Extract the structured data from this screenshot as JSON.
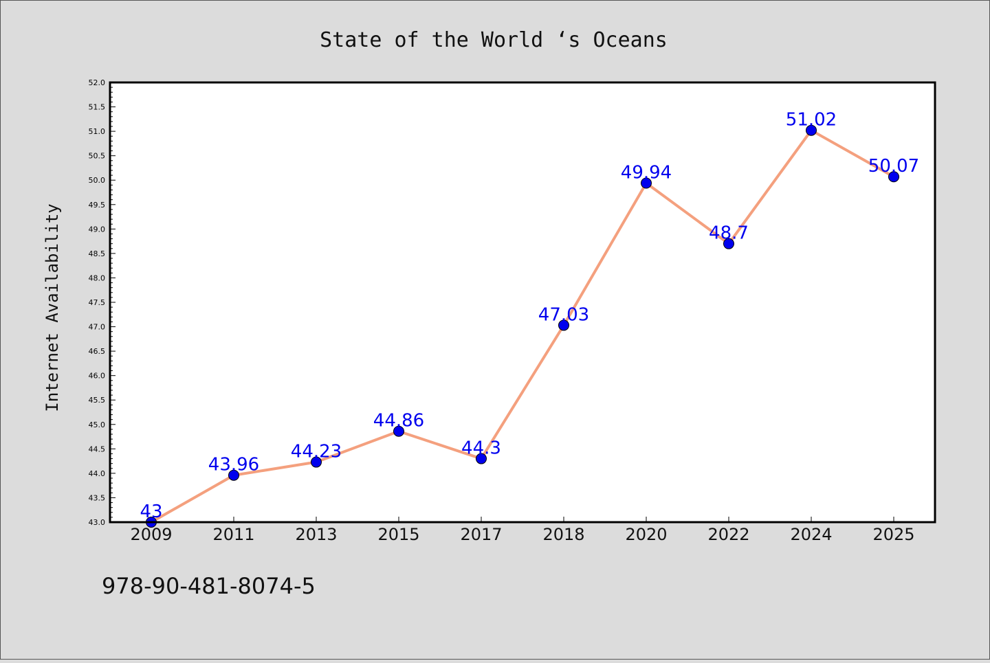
{
  "chart_data": {
    "type": "line",
    "title": "State of the World ‘s Oceans",
    "xlabel": "",
    "ylabel": "Internet Availability",
    "categories": [
      "2009",
      "2011",
      "2013",
      "2015",
      "2017",
      "2018",
      "2020",
      "2022",
      "2024",
      "2025"
    ],
    "series": [
      {
        "values": [
          43,
          43.96,
          44.23,
          44.86,
          44.3,
          47.03,
          49.94,
          48.7,
          51.02,
          50.07
        ],
        "data_labels": [
          "43",
          "43.96",
          "44.23",
          "44.86",
          "44.3",
          "47.03",
          "49.94",
          "48.7",
          "51.02",
          "50.07"
        ],
        "line_color": "#f4a07e",
        "marker_color": "#0000ee",
        "label_color": "#0000ee"
      }
    ],
    "ylim": [
      43.0,
      52.0
    ],
    "yticks": [
      "43.0",
      "43.5",
      "44.0",
      "44.5",
      "45.0",
      "45.5",
      "46.0",
      "46.5",
      "47.0",
      "47.5",
      "48.0",
      "48.5",
      "49.0",
      "49.5",
      "50.0",
      "50.5",
      "51.0",
      "51.5",
      "52.0"
    ],
    "grid": false,
    "legend": "none",
    "background_color": "#dcdcdc",
    "plot_background_color": "#ffffff"
  },
  "footnote": "978-90-481-8074-5"
}
